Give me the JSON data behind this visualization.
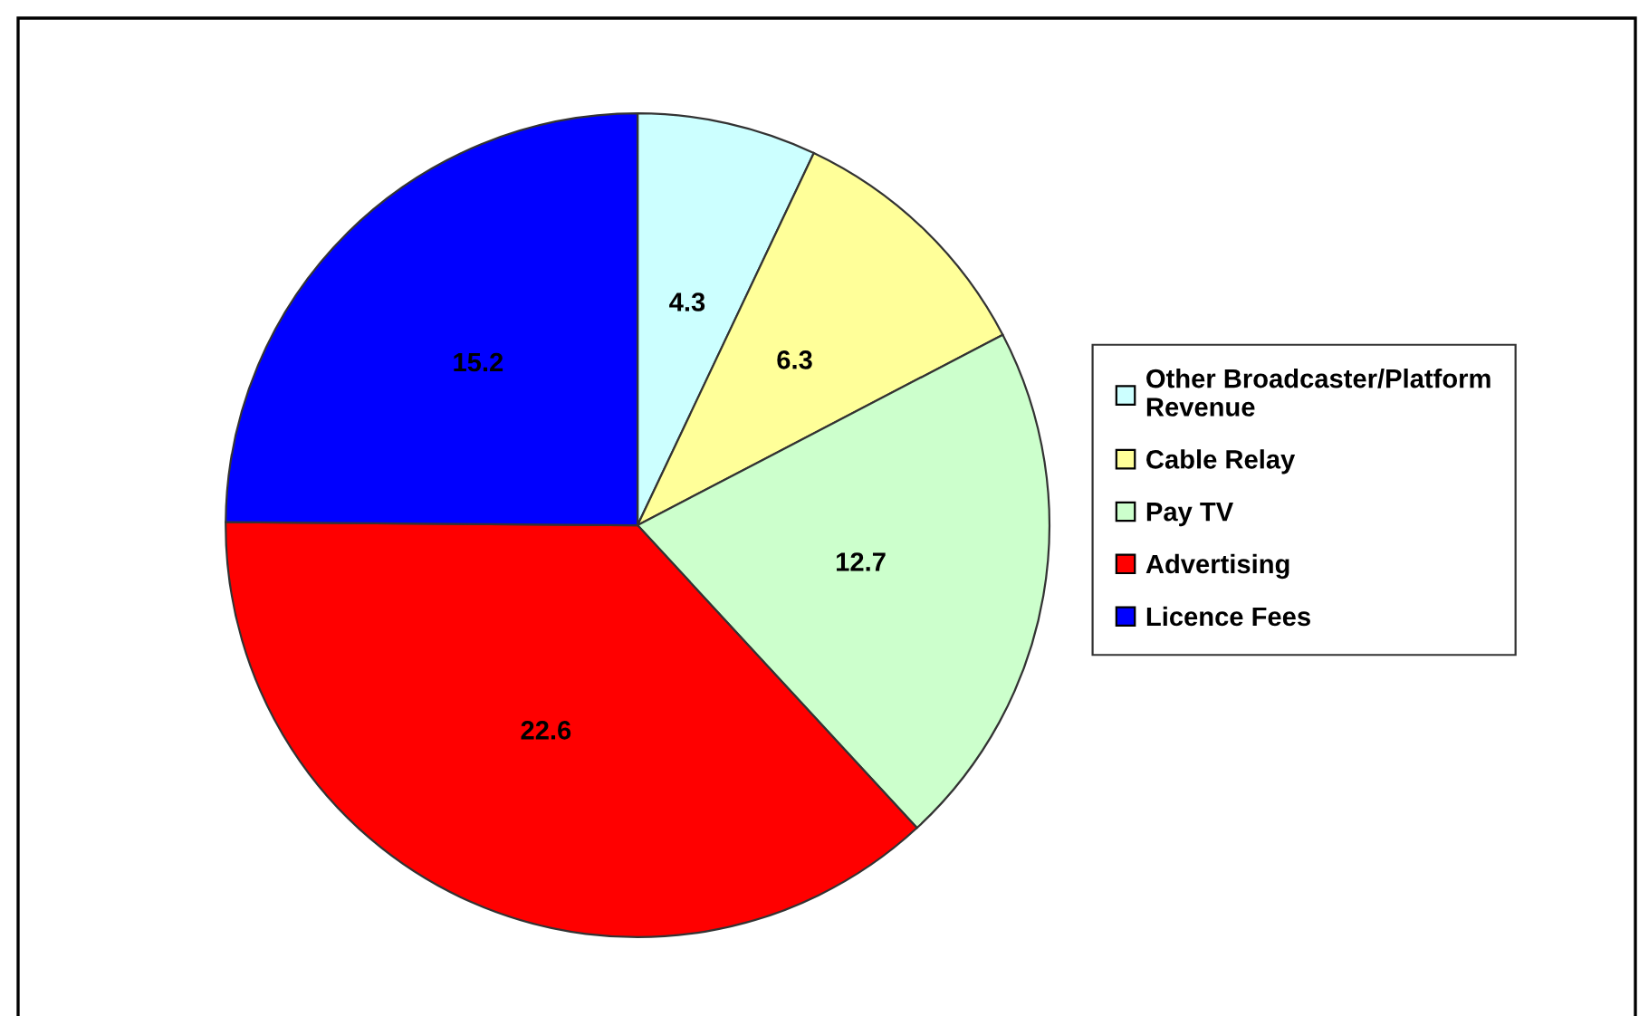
{
  "chart_data": {
    "type": "pie",
    "categories": [
      "Other Broadcaster/Platform\nRevenue",
      "Cable Relay",
      "Pay TV",
      "Advertising",
      "Licence Fees"
    ],
    "values": [
      4.3,
      6.3,
      12.7,
      22.6,
      15.2
    ],
    "colors": [
      "#ccffff",
      "#ffff99",
      "#ccffcc",
      "#ff0000",
      "#0000ff"
    ],
    "data_labels": true,
    "legend": "right"
  }
}
